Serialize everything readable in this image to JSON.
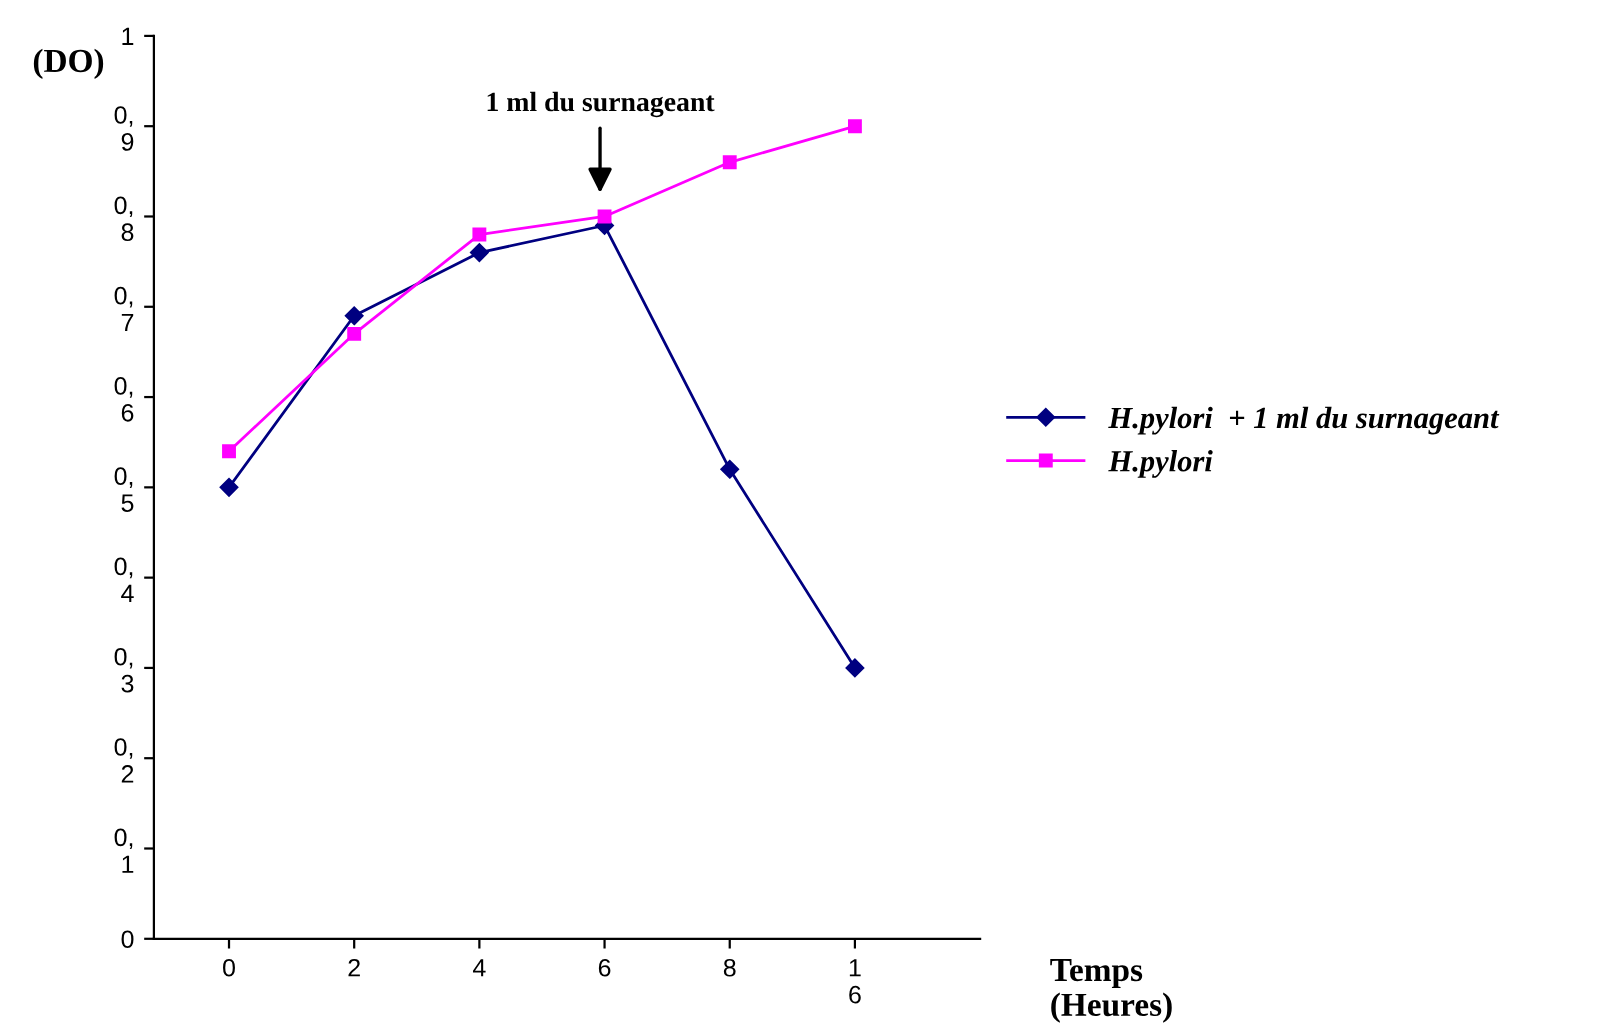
{
  "chart_data": {
    "type": "line",
    "ylabel": "(DO)",
    "xlabel": "Temps\n(Heures)",
    "categories": [
      "0",
      "2",
      "4",
      "6",
      "8",
      "1\n6"
    ],
    "series": [
      {
        "name": "H.pylori  + 1 ml du surnageant",
        "color": "#000080",
        "marker": "diamond",
        "values": [
          0.5,
          0.69,
          0.76,
          0.79,
          0.52,
          0.3
        ]
      },
      {
        "name": "H.pylori",
        "color": "#ff00ff",
        "marker": "square",
        "values": [
          0.54,
          0.67,
          0.78,
          0.8,
          0.86,
          0.9
        ]
      }
    ],
    "ylim": [
      0,
      1
    ],
    "yticks": [
      0,
      {
        "value": 0.1,
        "label": "0,\n1"
      },
      {
        "value": 0.2,
        "label": "0,\n2"
      },
      {
        "value": 0.3,
        "label": "0,\n3"
      },
      {
        "value": 0.4,
        "label": "0,\n4"
      },
      {
        "value": 0.5,
        "label": "0,\n5"
      },
      {
        "value": 0.6,
        "label": "0,\n6"
      },
      {
        "value": 0.7,
        "label": "0,\n7"
      },
      {
        "value": 0.8,
        "label": "0,\n8"
      },
      {
        "value": 0.9,
        "label": "0,\n9"
      },
      1
    ],
    "annotations": [
      "1 ml du surnageant"
    ],
    "legend": "right",
    "grid": false
  }
}
